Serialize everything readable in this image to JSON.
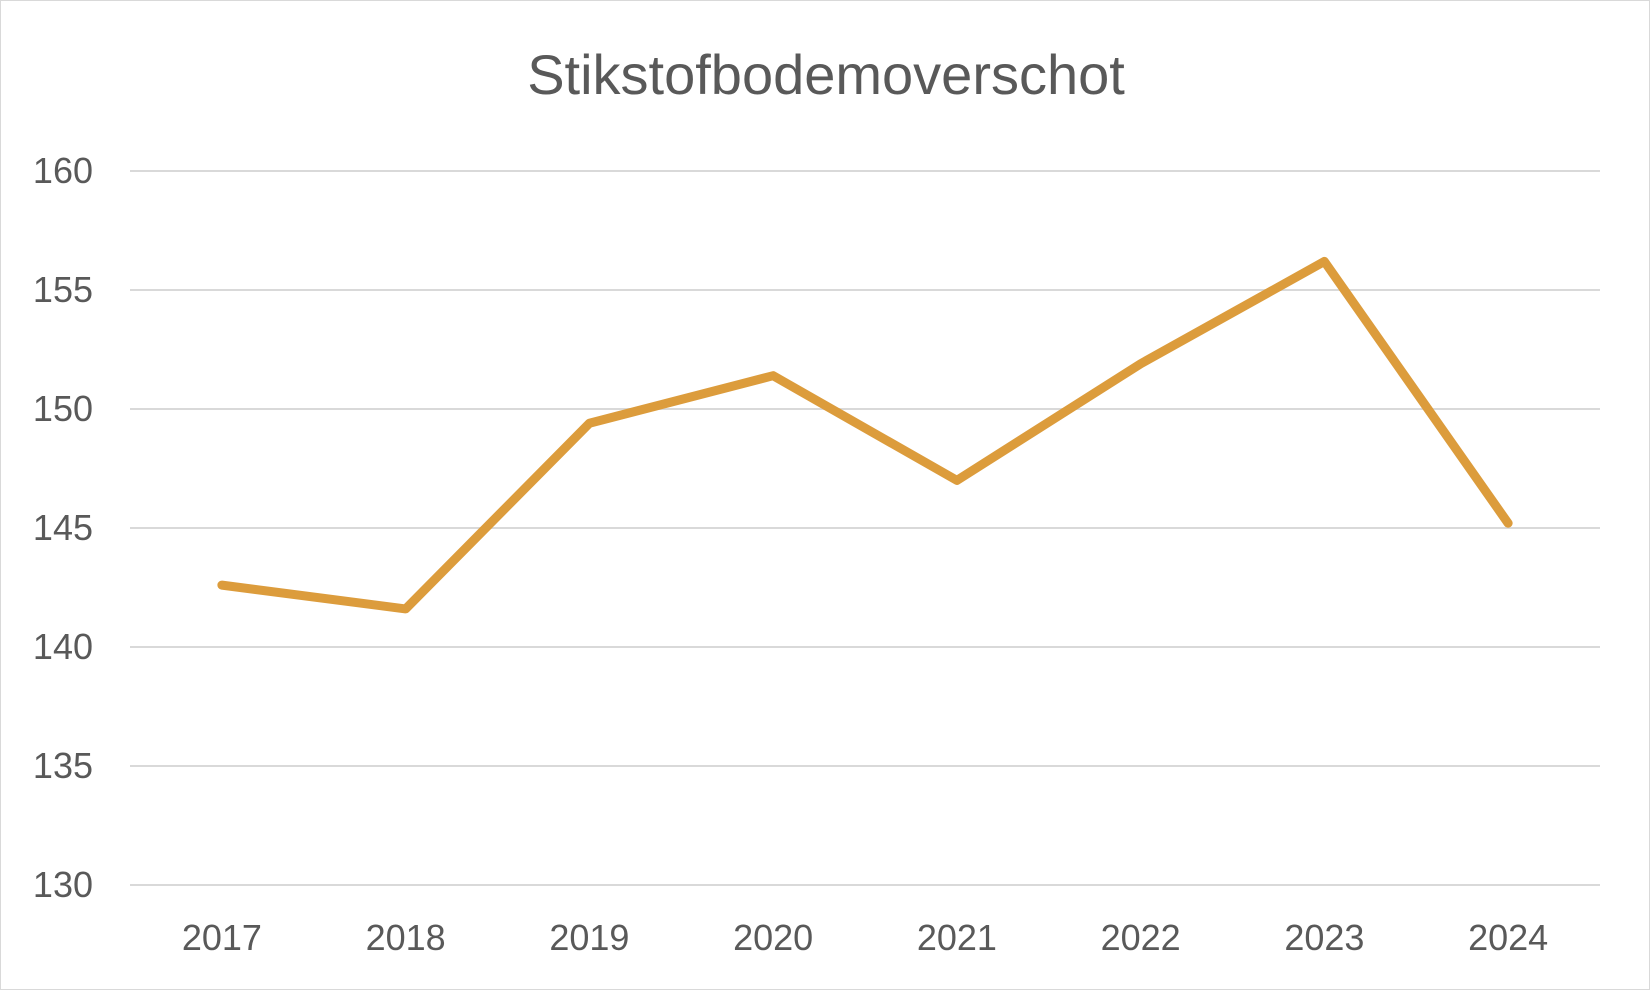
{
  "chart_data": {
    "type": "line",
    "title": "Stikstofbodemoverschot",
    "xlabel": "",
    "ylabel": "",
    "categories": [
      "2017",
      "2018",
      "2019",
      "2020",
      "2021",
      "2022",
      "2023",
      "2024"
    ],
    "series": [
      {
        "values": [
          142.6,
          141.6,
          149.4,
          151.4,
          147.0,
          151.9,
          156.2,
          145.2
        ],
        "color": "#dc9c3c"
      }
    ],
    "ylim": [
      130,
      160
    ],
    "yticks": [
      "130",
      "135",
      "140",
      "145",
      "150",
      "155",
      "160"
    ],
    "grid": true,
    "legend": "none"
  }
}
